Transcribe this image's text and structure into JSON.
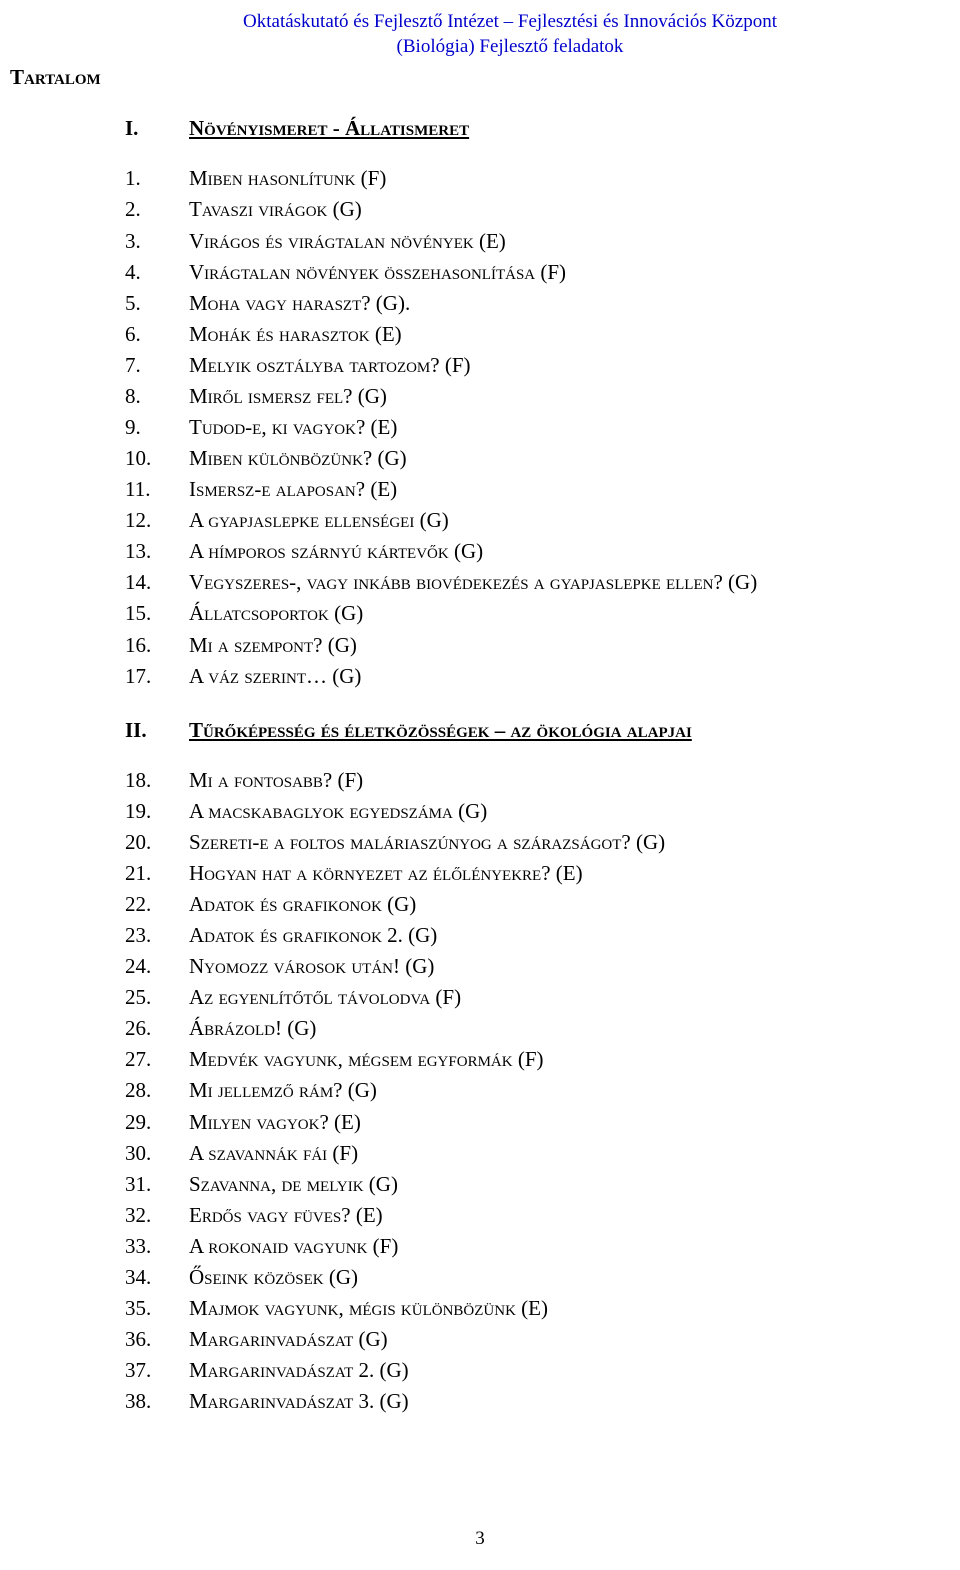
{
  "header": {
    "line1": "Oktatáskutató és Fejlesztő Intézet – Fejlesztési és Innovációs Központ",
    "line2": "(Biológia) Fejlesztő feladatok"
  },
  "toc_title": "Tartalom",
  "sections": [
    {
      "num": "I.",
      "title": "Növényismeret - Állatismeret",
      "items": [
        {
          "num": "1.",
          "title": "Miben hasonlítunk (F)"
        },
        {
          "num": "2.",
          "title": "Tavaszi virágok (G)"
        },
        {
          "num": "3.",
          "title": "Virágos és virágtalan növények (E)"
        },
        {
          "num": "4.",
          "title": "Virágtalan növények összehasonlítása (F)"
        },
        {
          "num": "5.",
          "title": "Moha vagy haraszt? (G)."
        },
        {
          "num": "6.",
          "title": "Mohák és harasztok (E)"
        },
        {
          "num": "7.",
          "title": "Melyik osztályba tartozom? (F)"
        },
        {
          "num": "8.",
          "title": "Miről ismersz fel? (G)"
        },
        {
          "num": "9.",
          "title": "Tudod-e, ki vagyok? (E)"
        },
        {
          "num": "10.",
          "title": "Miben különbözünk? (G)"
        },
        {
          "num": "11.",
          "title": "Ismersz-e alaposan? (E)"
        },
        {
          "num": "12.",
          "title": "A gyapjaslepke ellenségei (G)"
        },
        {
          "num": "13.",
          "title": "A hímporos szárnyú kártevők (G)"
        },
        {
          "num": "14.",
          "title": "Vegyszeres-, vagy inkább biovédekezés a gyapjaslepke ellen? (G)"
        },
        {
          "num": "15.",
          "title": "Állatcsoportok (G)"
        },
        {
          "num": "16.",
          "title": "Mi a szempont? (G)"
        },
        {
          "num": "17.",
          "title": "A váz szerint… (G)"
        }
      ]
    },
    {
      "num": "II.",
      "title": "Tűrőképesség és életközösségek – az ökológia alapjai",
      "items": [
        {
          "num": "18.",
          "title": "Mi a fontosabb? (F)"
        },
        {
          "num": "19.",
          "title": "A macskabaglyok egyedszáma (G)"
        },
        {
          "num": "20.",
          "title": "Szereti-e a foltos maláriaszúnyog a szárazságot? (G)"
        },
        {
          "num": "21.",
          "title": "Hogyan hat a környezet az élőlényekre? (E)"
        },
        {
          "num": "22.",
          "title": "Adatok és grafikonok (G)"
        },
        {
          "num": "23.",
          "title": "Adatok és grafikonok 2. (G)"
        },
        {
          "num": "24.",
          "title": "Nyomozz városok után! (G)"
        },
        {
          "num": "25.",
          "title": "Az egyenlítőtől távolodva (F)"
        },
        {
          "num": "26.",
          "title": "Ábrázold! (G)"
        },
        {
          "num": "27.",
          "title": "Medvék vagyunk, mégsem egyformák (F)"
        },
        {
          "num": "28.",
          "title": "Mi jellemző rám? (G)"
        },
        {
          "num": "29.",
          "title": "Milyen vagyok? (E)"
        },
        {
          "num": "30.",
          "title": "A szavannák fái (F)"
        },
        {
          "num": "31.",
          "title": "Szavanna, de melyik (G)"
        },
        {
          "num": "32.",
          "title": "Erdős vagy füves? (E)"
        },
        {
          "num": "33.",
          "title": "A rokonaid vagyunk (F)"
        },
        {
          "num": "34.",
          "title": "Őseink közösek (G)"
        },
        {
          "num": "35.",
          "title": "Majmok vagyunk, mégis különbözünk (E)"
        },
        {
          "num": "36.",
          "title": "Margarinvadászat (G)"
        },
        {
          "num": "37.",
          "title": "Margarinvadászat 2. (G)"
        },
        {
          "num": "38.",
          "title": "Margarinvadászat 3. (G)"
        }
      ]
    }
  ],
  "page_number": "3"
}
